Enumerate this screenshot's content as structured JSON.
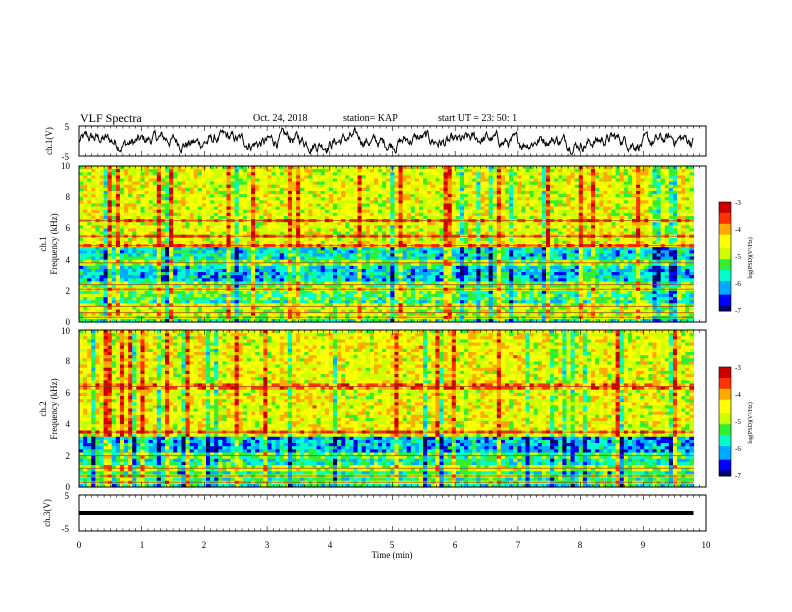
{
  "header": {
    "title": "VLF Spectra",
    "date": "Oct. 24, 2018",
    "station": "station= KAP",
    "start": "start  UT  =   23: 50: 1"
  },
  "chart_data": [
    {
      "type": "line",
      "name": "ch1-waveform",
      "ylabel": "ch.1(V)",
      "ylim": [
        -5,
        5
      ],
      "yticks": [
        "5",
        "-5"
      ],
      "xlim": [
        0,
        10
      ],
      "approx_amplitude": 2
    },
    {
      "type": "heatmap",
      "name": "ch1-spectrogram",
      "ylabel_line1": "ch.1",
      "ylabel_line2": "Frequency (kHz)",
      "ylim": [
        0,
        10
      ],
      "yticks": [
        "0",
        "2",
        "4",
        "6",
        "8",
        "10"
      ],
      "xlim": [
        0,
        10
      ],
      "data_end_min": 9.8,
      "colorbar": {
        "label": "log(PSD)(V²/Hz)",
        "range": [
          -7,
          -3
        ],
        "ticks": [
          "-3",
          "-4",
          "-5",
          "-6",
          "-7"
        ]
      },
      "bands_khz": [
        {
          "from": 0.0,
          "to": 1.5,
          "level": 0.38
        },
        {
          "from": 1.5,
          "to": 2.3,
          "level": 0.45
        },
        {
          "from": 2.3,
          "to": 3.5,
          "level": 0.28
        },
        {
          "from": 3.5,
          "to": 4.8,
          "level": 0.32
        },
        {
          "from": 4.8,
          "to": 10.0,
          "level": 0.62
        }
      ],
      "lines_khz": [
        0.3,
        0.6,
        1.0,
        2.1,
        2.4,
        3.8,
        4.9,
        5.5,
        6.5
      ]
    },
    {
      "type": "heatmap",
      "name": "ch2-spectrogram",
      "ylabel_line1": "ch.2",
      "ylabel_line2": "Frequency (kHz)",
      "ylim": [
        0,
        10
      ],
      "yticks": [
        "0",
        "2",
        "4",
        "6",
        "8",
        "10"
      ],
      "xlim": [
        0,
        10
      ],
      "data_end_min": 9.8,
      "colorbar": {
        "label": "log(PSD)(V²/Hz)",
        "range": [
          -7,
          -3
        ],
        "ticks": [
          "-3",
          "-4",
          "-5",
          "-6",
          "-7"
        ]
      },
      "bands_khz": [
        {
          "from": 0.0,
          "to": 1.8,
          "level": 0.36
        },
        {
          "from": 1.8,
          "to": 3.2,
          "level": 0.25
        },
        {
          "from": 3.2,
          "to": 10.0,
          "level": 0.63
        }
      ],
      "lines_khz": [
        0.3,
        0.7,
        1.2,
        2.0,
        3.5,
        6.4
      ]
    },
    {
      "type": "line",
      "name": "ch3-trace",
      "ylabel": "ch.3(V)",
      "ylim": [
        -5,
        5
      ],
      "yticks": [
        "5",
        "-5"
      ],
      "xlim": [
        0,
        10
      ],
      "xlabel": "Time (min)",
      "xticks": [
        "0",
        "1",
        "2",
        "3",
        "4",
        "5",
        "6",
        "7",
        "8",
        "9",
        "10"
      ],
      "constant_value": 0,
      "data_end_min": 9.8
    }
  ],
  "style": {
    "colormap": [
      "#000066",
      "#0000ff",
      "#00aaff",
      "#00ffcc",
      "#33ee33",
      "#ccff00",
      "#ffff00",
      "#ffaa00",
      "#ff3300",
      "#cc0000",
      "#ffffff"
    ],
    "axis_color": "#000000",
    "trace_color": "#000000"
  }
}
